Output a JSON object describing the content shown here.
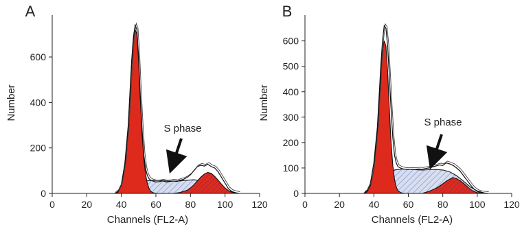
{
  "chart_data": [
    {
      "type": "area",
      "panel": "A",
      "annotation": "S phase",
      "xlabel": "Channels (FL2-A)",
      "ylabel": "Number",
      "xlim": [
        0,
        120
      ],
      "ylim": [
        0,
        760
      ],
      "x_ticks": [
        0,
        20,
        40,
        60,
        80,
        100,
        120
      ],
      "y_ticks": [
        0,
        200,
        400,
        600
      ],
      "colors": {
        "g1": "#dd2a1c",
        "s_fill": "#d6def0",
        "s_hatch": "#8a95cc",
        "g2": "#dd2a1c",
        "g2_hatch": "#8a2a50",
        "outline": "#111111"
      },
      "series": [
        {
          "role": "measured-histogram",
          "x": [
            36,
            38,
            40,
            42,
            44,
            45,
            46,
            47,
            48,
            49,
            50,
            51,
            52,
            53,
            54,
            55,
            56,
            57,
            58,
            60,
            62,
            64,
            66,
            68,
            70,
            72,
            74,
            76,
            78,
            80,
            82,
            84,
            86,
            88,
            90,
            92,
            94,
            96,
            98,
            100,
            102,
            104,
            106,
            108
          ],
          "y": [
            0,
            8,
            40,
            130,
            300,
            450,
            590,
            690,
            740,
            720,
            600,
            430,
            280,
            170,
            110,
            80,
            65,
            58,
            55,
            50,
            52,
            55,
            50,
            52,
            55,
            52,
            58,
            62,
            70,
            82,
            100,
            118,
            124,
            120,
            128,
            118,
            112,
            95,
            70,
            45,
            20,
            8,
            3,
            0
          ]
        },
        {
          "role": "G0/G1-fit",
          "x": [
            36,
            38,
            40,
            42,
            44,
            45,
            46,
            47,
            48,
            49,
            50,
            51,
            52,
            53,
            54,
            55,
            56,
            57,
            58,
            60,
            62
          ],
          "y": [
            0,
            5,
            35,
            120,
            290,
            440,
            580,
            680,
            720,
            700,
            580,
            410,
            260,
            150,
            85,
            45,
            22,
            10,
            4,
            0,
            0
          ]
        },
        {
          "role": "S-phase-fit",
          "x": [
            38,
            42,
            46,
            50,
            54,
            58,
            62,
            66,
            70,
            74,
            78,
            82,
            86,
            90,
            94,
            98,
            102,
            106,
            108
          ],
          "y": [
            0,
            15,
            35,
            48,
            55,
            57,
            57,
            55,
            54,
            55,
            58,
            60,
            55,
            42,
            28,
            14,
            5,
            1,
            0
          ]
        },
        {
          "role": "G2/M-fit",
          "x": [
            70,
            74,
            78,
            80,
            82,
            84,
            86,
            88,
            90,
            92,
            94,
            96,
            98,
            100,
            102,
            104,
            106,
            108
          ],
          "y": [
            0,
            4,
            14,
            24,
            38,
            55,
            72,
            85,
            92,
            88,
            75,
            58,
            40,
            24,
            12,
            5,
            2,
            0
          ]
        }
      ]
    },
    {
      "type": "area",
      "panel": "B",
      "annotation": "S phase",
      "xlabel": "Channels (FL2-A)",
      "ylabel": "Number",
      "xlim": [
        0,
        120
      ],
      "ylim": [
        0,
        680
      ],
      "x_ticks": [
        0,
        20,
        40,
        60,
        80,
        100,
        120
      ],
      "y_ticks": [
        0,
        100,
        200,
        300,
        400,
        500,
        600
      ],
      "colors": {
        "g1": "#dd2a1c",
        "s_fill": "#d6def0",
        "s_hatch": "#8a95cc",
        "g2": "#dd2a1c",
        "g2_hatch": "#8a2a50",
        "outline": "#111111"
      },
      "series": [
        {
          "role": "measured-histogram",
          "x": [
            34,
            36,
            38,
            40,
            42,
            43,
            44,
            45,
            46,
            47,
            48,
            49,
            50,
            51,
            52,
            53,
            54,
            56,
            58,
            60,
            62,
            64,
            66,
            68,
            70,
            72,
            74,
            76,
            78,
            80,
            82,
            84,
            86,
            88,
            90,
            92,
            94,
            96,
            98,
            100,
            102,
            104,
            106
          ],
          "y": [
            0,
            10,
            40,
            120,
            260,
            380,
            500,
            600,
            660,
            650,
            580,
            460,
            330,
            220,
            150,
            120,
            105,
            98,
            95,
            94,
            95,
            94,
            96,
            95,
            98,
            100,
            104,
            108,
            112,
            110,
            120,
            116,
            110,
            100,
            88,
            70,
            52,
            34,
            18,
            8,
            3,
            1,
            0
          ]
        },
        {
          "role": "G0/G1-fit",
          "x": [
            34,
            36,
            38,
            40,
            42,
            43,
            44,
            45,
            46,
            47,
            48,
            49,
            50,
            51,
            52,
            53,
            54,
            56,
            58
          ],
          "y": [
            0,
            6,
            30,
            95,
            240,
            360,
            470,
            560,
            600,
            580,
            480,
            330,
            200,
            110,
            55,
            25,
            10,
            2,
            0
          ]
        },
        {
          "role": "S-phase-fit",
          "x": [
            36,
            40,
            44,
            48,
            52,
            56,
            60,
            64,
            68,
            72,
            76,
            80,
            84,
            88,
            92,
            96,
            100,
            104,
            106
          ],
          "y": [
            0,
            20,
            55,
            80,
            92,
            96,
            95,
            93,
            92,
            93,
            94,
            92,
            85,
            70,
            48,
            25,
            10,
            2,
            0
          ]
        },
        {
          "role": "G2/M-fit",
          "x": [
            68,
            72,
            76,
            78,
            80,
            82,
            84,
            86,
            88,
            90,
            92,
            94,
            96,
            98,
            100,
            102,
            104
          ],
          "y": [
            0,
            8,
            20,
            28,
            38,
            48,
            56,
            62,
            58,
            50,
            40,
            28,
            16,
            8,
            3,
            1,
            0
          ]
        }
      ]
    }
  ]
}
